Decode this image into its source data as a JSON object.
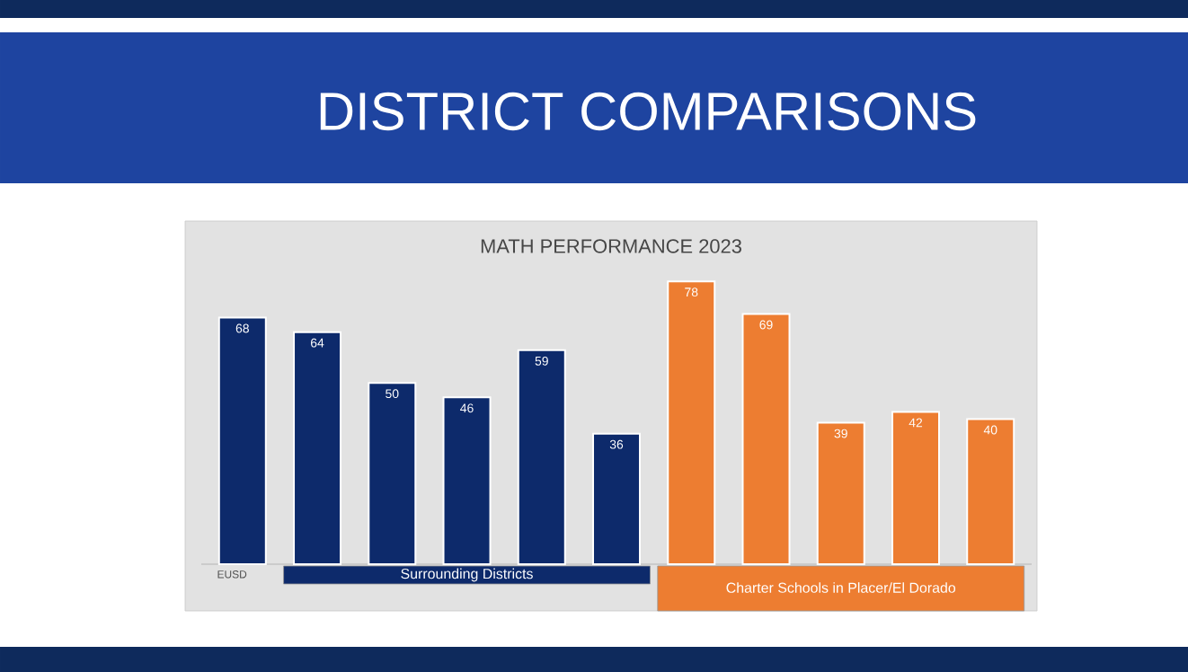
{
  "chart_data": {
    "type": "bar",
    "title": "DISTRICT COMPARISONS",
    "subtitle": "MATH PERFORMANCE 2023",
    "categories": [
      "EUSD",
      null,
      null,
      null,
      null,
      null,
      null,
      null,
      null,
      null,
      null
    ],
    "values": [
      68,
      64,
      50,
      46,
      59,
      36,
      78,
      69,
      39,
      42,
      40
    ],
    "colors": [
      "#0d2a6b",
      "#0d2a6b",
      "#0d2a6b",
      "#0d2a6b",
      "#0d2a6b",
      "#0d2a6b",
      "#ed7d31",
      "#ed7d31",
      "#ed7d31",
      "#ed7d31",
      "#ed7d31"
    ],
    "data_labels": true,
    "annotations": [
      "Surrounding Districts",
      "Charter Schools in Placer/El Dorado"
    ]
  }
}
